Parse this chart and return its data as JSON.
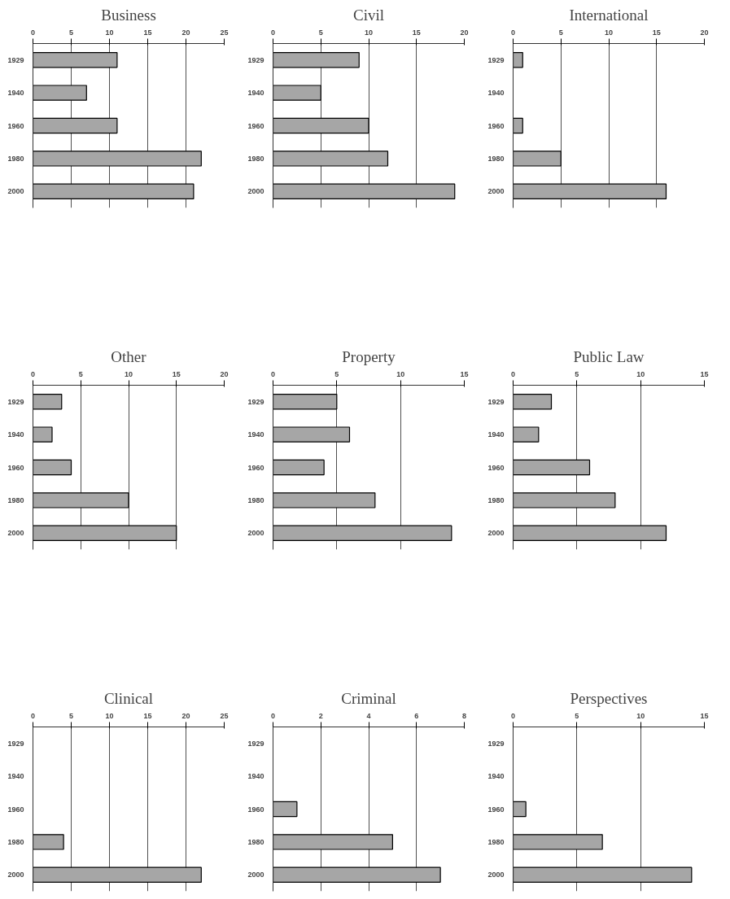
{
  "chart_data": [
    {
      "type": "bar",
      "orientation": "horizontal",
      "title": "Business",
      "categories": [
        "1929",
        "1940",
        "1960",
        "1980",
        "2000"
      ],
      "values": [
        11,
        7,
        11,
        22,
        21
      ],
      "color": "#a6a6a6",
      "xlim": [
        0,
        25
      ],
      "xticks": [
        0,
        5,
        10,
        15,
        20,
        25
      ],
      "grid": "x"
    },
    {
      "type": "bar",
      "orientation": "horizontal",
      "title": "Civil",
      "categories": [
        "1929",
        "1940",
        "1960",
        "1980",
        "2000"
      ],
      "values": [
        9,
        5,
        10,
        12,
        19
      ],
      "color": "#a6a6a6",
      "xlim": [
        0,
        20
      ],
      "xticks": [
        0,
        5,
        10,
        15,
        20
      ],
      "grid": "x"
    },
    {
      "type": "bar",
      "orientation": "horizontal",
      "title": "International",
      "categories": [
        "1929",
        "1940",
        "1960",
        "1980",
        "2000"
      ],
      "values": [
        1,
        0,
        1,
        5,
        16
      ],
      "color": "#a6a6a6",
      "xlim": [
        0,
        20
      ],
      "xticks": [
        0,
        5,
        10,
        15,
        20
      ],
      "grid": "x"
    },
    {
      "type": "bar",
      "orientation": "horizontal",
      "title": "Other",
      "categories": [
        "1929",
        "1940",
        "1960",
        "1980",
        "2000"
      ],
      "values": [
        3,
        2,
        4,
        10,
        15
      ],
      "color": "#a6a6a6",
      "xlim": [
        0,
        20
      ],
      "xticks": [
        0,
        5,
        10,
        15,
        20
      ],
      "grid": "x"
    },
    {
      "type": "bar",
      "orientation": "horizontal",
      "title": "Property",
      "categories": [
        "1929",
        "1940",
        "1960",
        "1980",
        "2000"
      ],
      "values": [
        5,
        6,
        4,
        8,
        14
      ],
      "color": "#a6a6a6",
      "xlim": [
        0,
        15
      ],
      "xticks": [
        0,
        5,
        10,
        15
      ],
      "grid": "x"
    },
    {
      "type": "bar",
      "orientation": "horizontal",
      "title": "Public Law",
      "categories": [
        "1929",
        "1940",
        "1960",
        "1980",
        "2000"
      ],
      "values": [
        3,
        2,
        6,
        8,
        12
      ],
      "color": "#a6a6a6",
      "xlim": [
        0,
        15
      ],
      "xticks": [
        0,
        5,
        10,
        15
      ],
      "grid": "x"
    },
    {
      "type": "bar",
      "orientation": "horizontal",
      "title": "Clinical",
      "categories": [
        "1929",
        "1940",
        "1960",
        "1980",
        "2000"
      ],
      "values": [
        0,
        0,
        0,
        4,
        22
      ],
      "color": "#a6a6a6",
      "xlim": [
        0,
        25
      ],
      "xticks": [
        0,
        5,
        10,
        15,
        20,
        25
      ],
      "grid": "x"
    },
    {
      "type": "bar",
      "orientation": "horizontal",
      "title": "Criminal",
      "categories": [
        "1929",
        "1940",
        "1960",
        "1980",
        "2000"
      ],
      "values": [
        0,
        0,
        1,
        5,
        7
      ],
      "color": "#a6a6a6",
      "xlim": [
        0,
        8
      ],
      "xticks": [
        0,
        2,
        4,
        6,
        8
      ],
      "grid": "x"
    },
    {
      "type": "bar",
      "orientation": "horizontal",
      "title": "Perspectives",
      "categories": [
        "1929",
        "1940",
        "1960",
        "1980",
        "2000"
      ],
      "values": [
        0,
        0,
        1,
        7,
        14
      ],
      "color": "#a6a6a6",
      "xlim": [
        0,
        15
      ],
      "xticks": [
        0,
        5,
        10,
        15
      ],
      "grid": "x"
    }
  ]
}
